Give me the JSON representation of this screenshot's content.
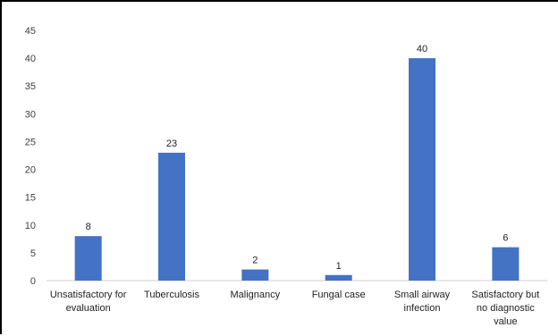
{
  "chart_data": {
    "type": "bar",
    "title": "",
    "xlabel": "",
    "ylabel": "",
    "categories": [
      [
        "Unsatisfactory for",
        "evaluation"
      ],
      [
        "Tuberculosis"
      ],
      [
        "Malignancy"
      ],
      [
        "Fungal case"
      ],
      [
        "Small airway",
        "infection"
      ],
      [
        "Satisfactory but",
        "no diagnostic",
        "value"
      ]
    ],
    "values": [
      8,
      23,
      2,
      1,
      40,
      6
    ],
    "data_labels": [
      "8",
      "23",
      "2",
      "1",
      "40",
      "6"
    ],
    "ylim": [
      0,
      45
    ],
    "yticks": [
      "0",
      "5",
      "10",
      "15",
      "20",
      "25",
      "30",
      "35",
      "40",
      "45"
    ],
    "grid": false,
    "legend": "none",
    "bar_color": "#4472C4"
  }
}
